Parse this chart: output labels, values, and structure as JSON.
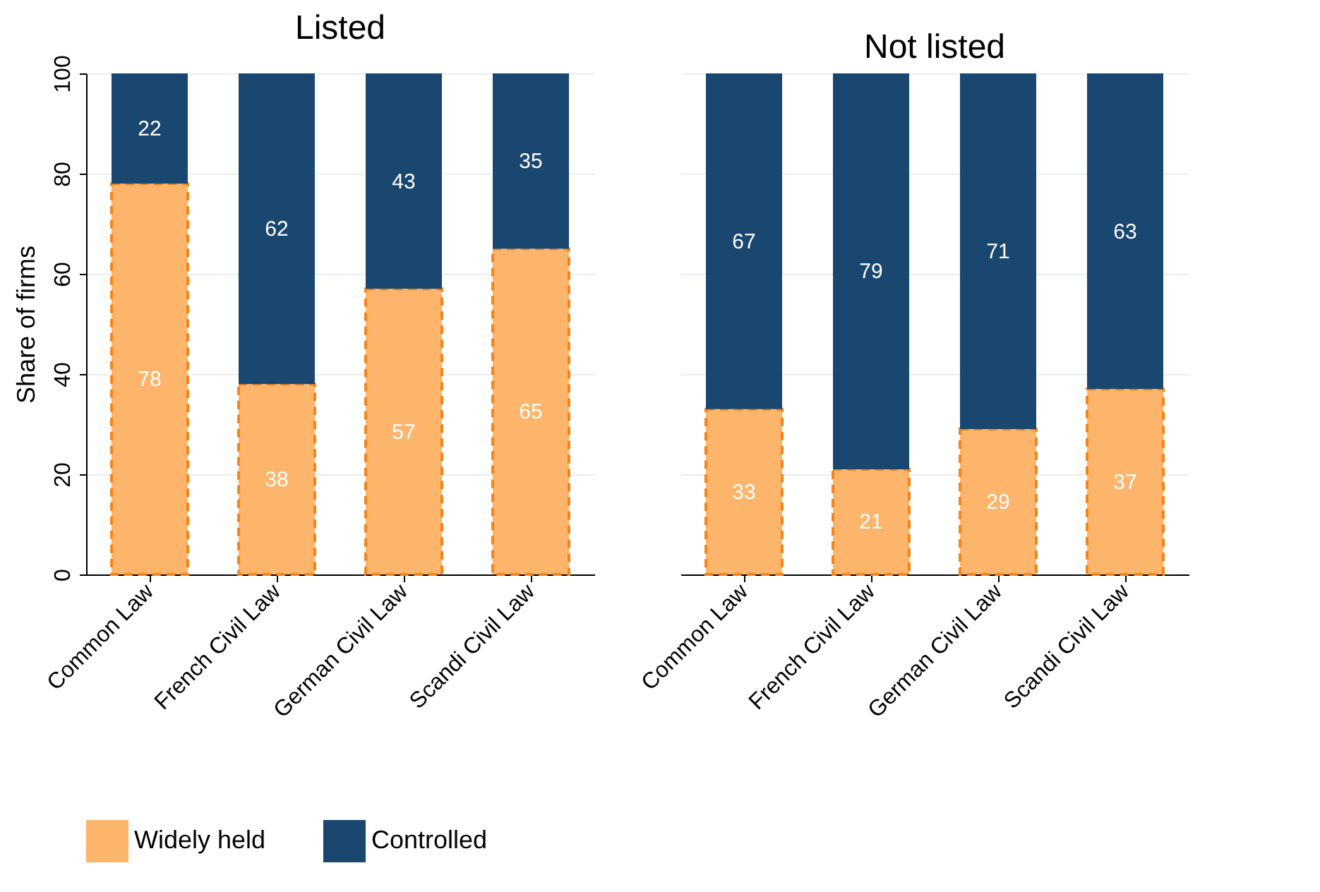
{
  "chart_data": [
    {
      "type": "bar",
      "title": "Listed",
      "ylabel": "Share of firms",
      "categories": [
        "Common Law",
        "French Civil Law",
        "German Civil Law",
        "Scandi Civil Law"
      ],
      "stacked": true,
      "ylim": [
        0,
        100
      ],
      "yticks": [
        0,
        20,
        40,
        60,
        80,
        100
      ],
      "grid": "y",
      "data_labels": true,
      "legend": "bottom",
      "series": [
        {
          "name": "Widely held",
          "color": "#fdb46b",
          "line_style": "dashed",
          "values": [
            78,
            38,
            57,
            65
          ]
        },
        {
          "name": "Controlled",
          "color": "#1a476f",
          "values": [
            22,
            62,
            43,
            35
          ]
        }
      ]
    },
    {
      "type": "bar",
      "title": "Not listed",
      "categories": [
        "Common Law",
        "French Civil Law",
        "German Civil Law",
        "Scandi Civil Law"
      ],
      "stacked": true,
      "ylim": [
        0,
        100
      ],
      "yticks": [
        0,
        20,
        40,
        60,
        80,
        100
      ],
      "grid": "y",
      "data_labels": true,
      "tick_labels": "x",
      "series": [
        {
          "name": "Widely held",
          "color": "#fdb46b",
          "line_style": "dashed",
          "values": [
            33,
            21,
            29,
            37
          ]
        },
        {
          "name": "Controlled",
          "color": "#1a476f",
          "values": [
            67,
            79,
            71,
            63
          ]
        }
      ]
    }
  ]
}
